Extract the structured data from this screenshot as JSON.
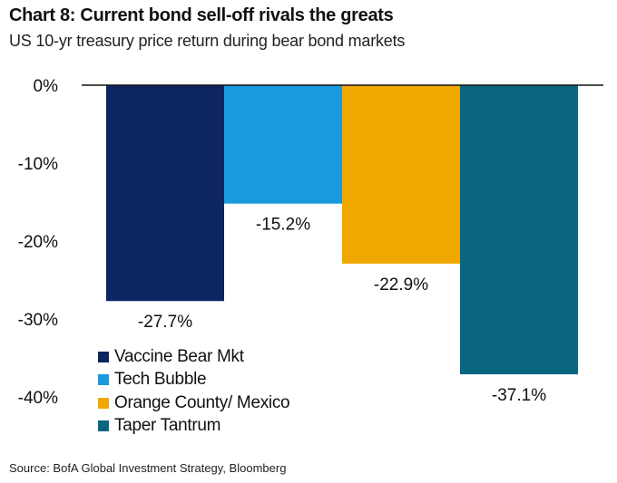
{
  "title": "Chart 8: Current bond sell-off rivals the greats",
  "subtitle": "US 10-yr treasury price return during bear bond markets",
  "source": "Source:  BofA Global Investment Strategy, Bloomberg",
  "chart_data": {
    "type": "bar",
    "title": "Chart 8: Current bond sell-off rivals the greats",
    "subtitle": "US 10-yr treasury price return during bear bond markets",
    "ylabel": "",
    "xlabel": "",
    "ylim": [
      -40,
      0
    ],
    "yticks": [
      0,
      -10,
      -20,
      -30,
      -40
    ],
    "ytick_labels": [
      "0%",
      "-10%",
      "-20%",
      "-30%",
      "-40%"
    ],
    "legend_position": "bottom-left",
    "series": [
      {
        "name": "Vaccine Bear Mkt",
        "value": -27.7,
        "label": "-27.7%",
        "color": "#0d2561"
      },
      {
        "name": "Tech Bubble",
        "value": -15.2,
        "label": "-15.2%",
        "color": "#1a9be0"
      },
      {
        "name": "Orange County/ Mexico",
        "value": -22.9,
        "label": "-22.9%",
        "color": "#f0a800"
      },
      {
        "name": "Taper Tantrum",
        "value": -37.1,
        "label": "-37.1%",
        "color": "#0a6680"
      }
    ]
  }
}
